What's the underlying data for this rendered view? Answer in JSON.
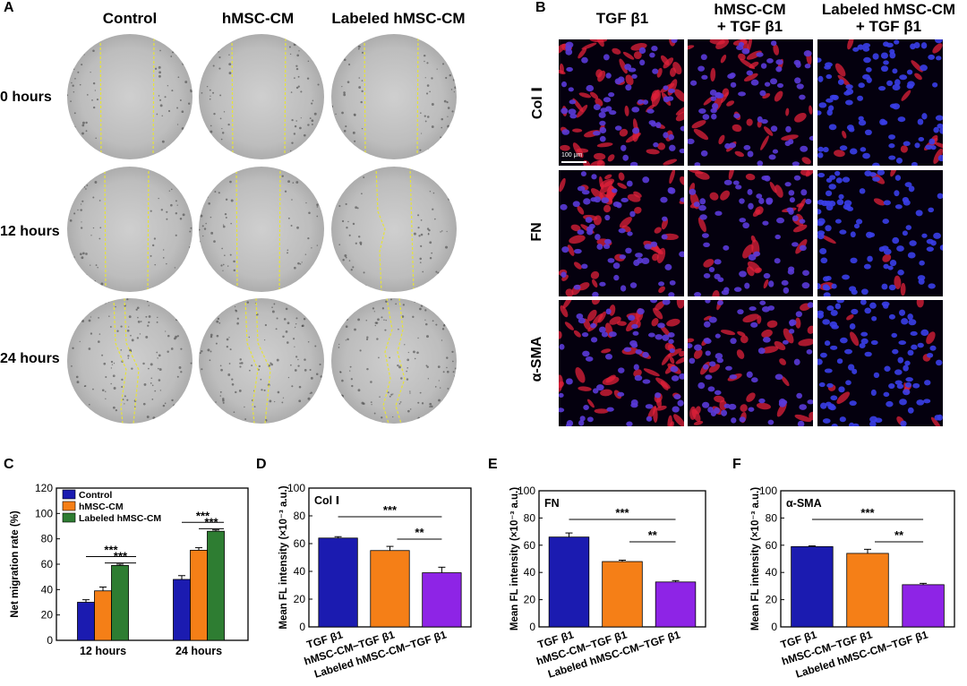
{
  "panel_A": {
    "letter": "A",
    "columns": [
      "Control",
      "hMSC-CM",
      "Labeled hMSC-CM"
    ],
    "rows": [
      "0 hours",
      "12 hours",
      "24 hours"
    ]
  },
  "panel_B": {
    "letter": "B",
    "columns": [
      {
        "line1": "TGF β1",
        "line2": ""
      },
      {
        "line1": "hMSC-CM",
        "line2": "+ TGF β1"
      },
      {
        "line1": "Labeled hMSC-CM",
        "line2": "+ TGF β1"
      }
    ],
    "rows": [
      "Col Ⅰ",
      "FN",
      "α-SMA"
    ],
    "scale_bar": "100 μm"
  },
  "colors": {
    "blue": "#1b1bb0",
    "orange": "#f57f17",
    "green": "#2e7d32",
    "purple": "#8e24e6",
    "scratch_line": "#e6e33a"
  },
  "chart_data": [
    {
      "panel": "C",
      "type": "bar",
      "ylabel": "Net migration rate (%)",
      "ylim": [
        0,
        120
      ],
      "yticks": [
        0,
        20,
        40,
        60,
        80,
        100,
        120
      ],
      "categories": [
        "12 hours",
        "24 hours"
      ],
      "legend_position": "top-left",
      "series": [
        {
          "name": "Control",
          "values": [
            30,
            48
          ],
          "errors": [
            2,
            3
          ]
        },
        {
          "name": "hMSC-CM",
          "values": [
            39,
            71
          ],
          "errors": [
            3,
            2
          ]
        },
        {
          "name": "Labeled hMSC-CM",
          "values": [
            59,
            86
          ],
          "errors": [
            1,
            1
          ]
        }
      ],
      "annotations": [
        "***",
        "***",
        "***",
        "***"
      ]
    },
    {
      "panel": "D",
      "type": "bar",
      "title": "Col Ⅰ",
      "ylabel": "Mean FL intensity (×10⁻³ a.u.)",
      "ylim": [
        0,
        100
      ],
      "yticks": [
        0,
        20,
        40,
        60,
        80,
        100
      ],
      "categories": [
        "TGF β1",
        "hMSC-CM−TGF β1",
        "Labeled hMSC-CM−TGF β1"
      ],
      "values": [
        64,
        55,
        39
      ],
      "errors": [
        1,
        3,
        4
      ],
      "annotations": [
        "***",
        "**"
      ]
    },
    {
      "panel": "E",
      "type": "bar",
      "title": "FN",
      "ylabel": "Mean FL intensity (×10⁻³ a.u.)",
      "ylim": [
        0,
        100
      ],
      "yticks": [
        0,
        20,
        40,
        60,
        80,
        100
      ],
      "categories": [
        "TGF β1",
        "hMSC-CM−TGF β1",
        "Labeled hMSC-CM−TGF β1"
      ],
      "values": [
        66,
        48,
        33
      ],
      "errors": [
        3,
        1,
        1
      ],
      "annotations": [
        "***",
        "**"
      ]
    },
    {
      "panel": "F",
      "type": "bar",
      "title": "α-SMA",
      "ylabel": "Mean FL intensity (×10⁻³ a.u.)",
      "ylim": [
        0,
        100
      ],
      "yticks": [
        0,
        20,
        40,
        60,
        80,
        100
      ],
      "categories": [
        "TGF β1",
        "hMSC-CM−TGF β1",
        "Labeled hMSC-CM−TGF β1"
      ],
      "values": [
        59,
        54,
        31
      ],
      "errors": [
        0.5,
        3,
        1
      ],
      "annotations": [
        "***",
        "**"
      ]
    }
  ]
}
